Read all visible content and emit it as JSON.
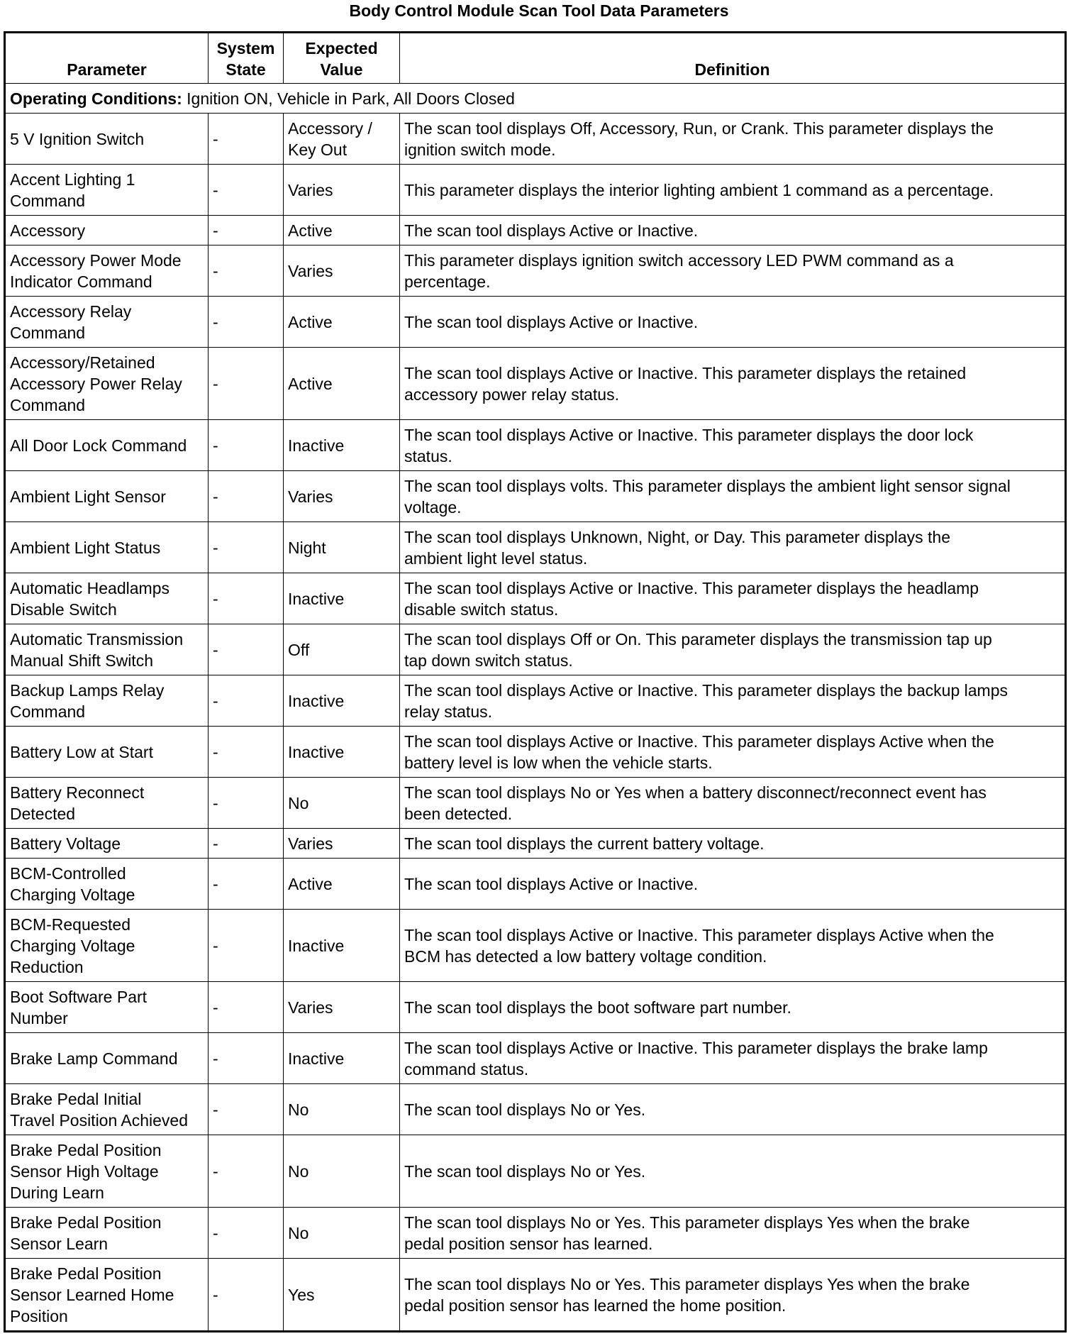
{
  "title": "Body Control Module Scan Tool Data Parameters",
  "headers": [
    "Parameter",
    "System\nState",
    "Expected\nValue",
    "Definition"
  ],
  "operating_conditions": {
    "label": "Operating Conditions:",
    "text": " Ignition ON, Vehicle in Park, All Doors Closed"
  },
  "rows": [
    {
      "p": "5 V Ignition Switch",
      "s": "-",
      "e": "Accessory /\nKey Out",
      "d": "The scan tool displays Off, Accessory, Run, or Crank. This parameter displays the\nignition switch mode."
    },
    {
      "p": "Accent Lighting 1\nCommand",
      "s": "-",
      "e": "Varies",
      "d": "This parameter displays the interior lighting ambient 1 command as a percentage."
    },
    {
      "p": "Accessory",
      "s": "-",
      "e": "Active",
      "d": "The scan tool displays Active or Inactive."
    },
    {
      "p": "Accessory Power Mode\nIndicator Command",
      "s": "-",
      "e": "Varies",
      "d": "This parameter displays ignition switch accessory LED PWM command as a\npercentage."
    },
    {
      "p": "Accessory Relay\nCommand",
      "s": "-",
      "e": "Active",
      "d": "The scan tool displays Active or Inactive."
    },
    {
      "p": "Accessory/Retained\nAccessory Power Relay\nCommand",
      "s": "-",
      "e": "Active",
      "d": "The scan tool displays Active or Inactive. This parameter displays the retained\naccessory power relay status."
    },
    {
      "p": "All Door Lock Command",
      "s": "-",
      "e": "Inactive",
      "d": "The scan tool displays Active or Inactive. This parameter displays the door lock\nstatus."
    },
    {
      "p": "Ambient Light Sensor",
      "s": "-",
      "e": "Varies",
      "d": "The scan tool displays volts. This parameter displays the ambient light sensor signal\nvoltage."
    },
    {
      "p": "Ambient Light Status",
      "s": "-",
      "e": "Night",
      "d": "The scan tool displays Unknown, Night, or Day. This parameter displays the\nambient light level status."
    },
    {
      "p": "Automatic Headlamps\nDisable Switch",
      "s": "-",
      "e": "Inactive",
      "d": "The scan tool displays Active or Inactive. This parameter displays the headlamp\ndisable switch status."
    },
    {
      "p": "Automatic Transmission\nManual Shift Switch",
      "s": "-",
      "e": "Off",
      "d": "The scan tool displays Off or On. This parameter displays the transmission tap up\ntap down switch status."
    },
    {
      "p": "Backup Lamps Relay\nCommand",
      "s": "-",
      "e": "Inactive",
      "d": "The scan tool displays Active or Inactive. This parameter displays the backup lamps\nrelay status."
    },
    {
      "p": "Battery Low at Start",
      "s": "-",
      "e": "Inactive",
      "d": "The scan tool displays Active or Inactive. This parameter displays Active when the\nbattery level is low when the vehicle starts."
    },
    {
      "p": "Battery Reconnect\nDetected",
      "s": "-",
      "e": "No",
      "d": "The scan tool displays No or Yes when a battery disconnect/reconnect event has\nbeen detected."
    },
    {
      "p": "Battery Voltage",
      "s": "-",
      "e": "Varies",
      "d": "The scan tool displays the current battery voltage."
    },
    {
      "p": "BCM-Controlled\nCharging Voltage",
      "s": "-",
      "e": "Active",
      "d": "The scan tool displays Active or Inactive."
    },
    {
      "p": "BCM-Requested\nCharging Voltage\nReduction",
      "s": "-",
      "e": "Inactive",
      "d": "The scan tool displays Active or Inactive. This parameter displays Active when the\nBCM has detected a low battery voltage condition."
    },
    {
      "p": "Boot Software Part\nNumber",
      "s": "-",
      "e": "Varies",
      "d": "The scan tool displays the boot software part number."
    },
    {
      "p": "Brake Lamp Command",
      "s": "-",
      "e": "Inactive",
      "d": "The scan tool displays Active or Inactive. This parameter displays the brake lamp\ncommand status."
    },
    {
      "p": "Brake Pedal Initial\nTravel Position Achieved",
      "s": "-",
      "e": "No",
      "d": "The scan tool displays No or Yes."
    },
    {
      "p": "Brake Pedal Position\nSensor High Voltage\nDuring Learn",
      "s": "-",
      "e": "No",
      "d": "The scan tool displays No or Yes."
    },
    {
      "p": "Brake Pedal Position\nSensor Learn",
      "s": "-",
      "e": "No",
      "d": "The scan tool displays No or Yes. This parameter displays Yes when the brake\npedal position sensor has learned."
    },
    {
      "p": "Brake Pedal Position\nSensor Learned Home\nPosition",
      "s": "-",
      "e": "Yes",
      "d": "The scan tool displays No or Yes. This parameter displays Yes when the brake\npedal position sensor has learned the home position."
    }
  ]
}
